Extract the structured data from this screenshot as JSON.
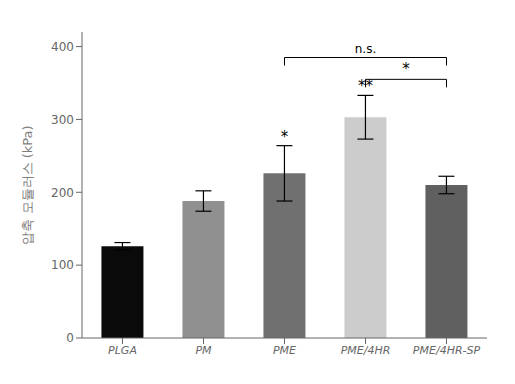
{
  "chart_data": {
    "type": "bar",
    "categories": [
      "PLGA",
      "PM",
      "PME",
      "PME/4HR",
      "PME/4HR-SP"
    ],
    "values": [
      126,
      188,
      226,
      303,
      210
    ],
    "errors": [
      5,
      14,
      38,
      30,
      12
    ],
    "colors": [
      "#0a0a0a",
      "#909090",
      "#707070",
      "#cccccc",
      "#606060"
    ],
    "ylabel": "압축 모듈러스 (kPa)",
    "ylim": [
      0,
      420
    ],
    "yticks": [
      0,
      100,
      200,
      300,
      400
    ],
    "grid": false,
    "annotations": [
      {
        "text": "*",
        "category": "PME"
      },
      {
        "text": "**",
        "category": "PME/4HR"
      },
      {
        "text": "n.s.",
        "from": "PME",
        "to": "PME/4HR-SP",
        "y": 385
      },
      {
        "text": "*",
        "from": "PME/4HR",
        "to": "PME/4HR-SP",
        "y": 355
      }
    ]
  }
}
